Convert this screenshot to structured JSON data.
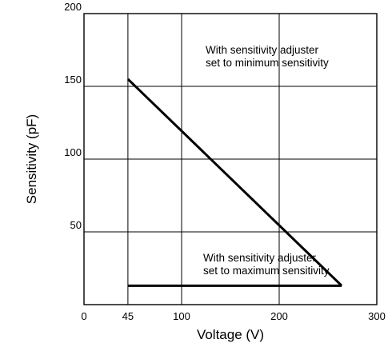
{
  "chart_data": {
    "type": "line",
    "xlabel": "Voltage (V)",
    "ylabel": "Sensitivity  (pF)",
    "xlim": [
      0,
      300
    ],
    "ylim": [
      0,
      200
    ],
    "x_ticks": [
      0,
      45,
      100,
      200,
      300
    ],
    "x_tick_labels": [
      "0",
      "45",
      "100",
      "200",
      "300"
    ],
    "y_ticks": [
      50,
      100,
      150,
      200
    ],
    "y_tick_labels": [
      "50",
      "100",
      "150",
      "200"
    ],
    "grid": true,
    "series": [
      {
        "x": [
          45,
          264
        ],
        "y": [
          155,
          13
        ]
      },
      {
        "x": [
          45,
          264
        ],
        "y": [
          13,
          13
        ]
      }
    ],
    "annotations": [
      {
        "line1": "With sensitivity adjuster",
        "line2": "set to minimum sensitivity"
      },
      {
        "line1": "With sensitivity adjuster",
        "line2": "set to maximum sensitivity"
      }
    ],
    "colors": {
      "line": "#000000",
      "grid": "#000000",
      "background": "#ffffff"
    }
  }
}
